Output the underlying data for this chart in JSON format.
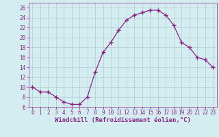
{
  "x": [
    0,
    1,
    2,
    3,
    4,
    5,
    6,
    7,
    8,
    9,
    10,
    11,
    12,
    13,
    14,
    15,
    16,
    17,
    18,
    19,
    20,
    21,
    22,
    23
  ],
  "y": [
    10,
    9,
    9,
    8,
    7,
    6.5,
    6.5,
    8,
    13,
    17,
    19,
    21.5,
    23.5,
    24.5,
    25,
    25.5,
    25.5,
    24.5,
    22.5,
    19,
    18,
    16,
    15.5,
    14
  ],
  "line_color": "#882288",
  "marker": "+",
  "marker_size": 4,
  "marker_lw": 1.0,
  "line_width": 0.9,
  "bg_color": "#d4edf0",
  "grid_color": "#b0cccc",
  "xlabel": "Windchill (Refroidissement éolien,°C)",
  "xlim": [
    -0.5,
    23.5
  ],
  "ylim": [
    6,
    27
  ],
  "yticks": [
    6,
    8,
    10,
    12,
    14,
    16,
    18,
    20,
    22,
    24,
    26
  ],
  "xticks": [
    0,
    1,
    2,
    3,
    4,
    5,
    6,
    7,
    8,
    9,
    10,
    11,
    12,
    13,
    14,
    15,
    16,
    17,
    18,
    19,
    20,
    21,
    22,
    23
  ],
  "tick_color": "#882288",
  "label_fontsize": 6.5,
  "tick_fontsize": 5.5
}
